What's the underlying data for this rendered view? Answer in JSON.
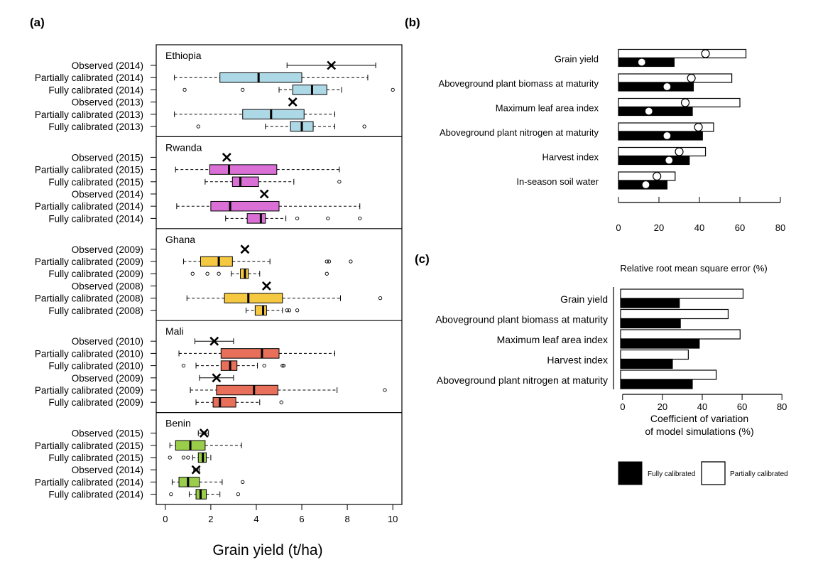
{
  "panel_labels": [
    "(a)",
    "(b)",
    "(c)"
  ],
  "panel_a": {
    "xlabel": "Grain yield (t/ha)",
    "xticks": [
      0,
      2,
      4,
      6,
      8,
      10
    ],
    "xlim": [
      -0.4,
      10.4
    ]
  },
  "panel_b": {
    "xticks": [
      0,
      20,
      40,
      60,
      80
    ],
    "xlim": [
      0,
      80
    ],
    "axis_title": "Relative root mean square error (%)"
  },
  "panel_c": {
    "xticks": [
      0,
      20,
      40,
      60,
      80
    ],
    "xlim": [
      -1,
      81
    ],
    "xlabel_line1": "Coefficient of variation",
    "xlabel_line2": "of model simulations (%)"
  },
  "legend": {
    "fully": "Fully calibrated",
    "partially": "Partially calibrated"
  },
  "colors": {
    "Ethiopia": "#add8e6",
    "Rwanda": "#da70d6",
    "Ghana": "#f5c842",
    "Mali": "#e8705a",
    "Benin": "#9acd4a",
    "fully": "#000000",
    "partially": "#ffffff"
  },
  "chart_data": [
    {
      "type": "box",
      "panel": "(a)",
      "xlabel": "Grain yield (t/ha)",
      "xlim": [
        -0.4,
        10.4
      ],
      "groups": [
        {
          "country": "Ethiopia",
          "rows": [
            {
              "label": "Observed (2014)",
              "kind": "observed",
              "min": 5.35,
              "max": 9.25,
              "mean": 7.3,
              "outliers": []
            },
            {
              "label": "Partially calibrated (2014)",
              "kind": "box",
              "whislo": 0.4,
              "q1": 2.4,
              "med": 4.1,
              "q3": 6.0,
              "whishi": 8.9,
              "outliers": []
            },
            {
              "label": "Fully calibrated (2014)",
              "kind": "box",
              "whislo": 5.0,
              "q1": 5.6,
              "med": 6.45,
              "q3": 7.1,
              "whishi": 7.75,
              "outliers": [
                0.85,
                3.4,
                10.0
              ]
            },
            {
              "label": "Observed (2013)",
              "kind": "observed",
              "min": null,
              "max": null,
              "mean": 5.6,
              "outliers": []
            },
            {
              "label": "Partially calibrated (2013)",
              "kind": "box",
              "whislo": 0.4,
              "q1": 3.4,
              "med": 4.65,
              "q3": 6.1,
              "whishi": 7.45,
              "outliers": []
            },
            {
              "label": "Fully calibrated (2013)",
              "kind": "box",
              "whislo": 4.4,
              "q1": 5.5,
              "med": 6.0,
              "q3": 6.5,
              "whishi": 7.45,
              "outliers": [
                1.45,
                8.75
              ]
            }
          ]
        },
        {
          "country": "Rwanda",
          "rows": [
            {
              "label": "Observed (2015)",
              "kind": "observed",
              "min": null,
              "max": null,
              "mean": 2.7,
              "outliers": []
            },
            {
              "label": "Partially calibrated (2015)",
              "kind": "box",
              "whislo": 0.45,
              "q1": 1.95,
              "med": 2.8,
              "q3": 4.9,
              "whishi": 7.65,
              "outliers": []
            },
            {
              "label": "Fully calibrated (2015)",
              "kind": "box",
              "whislo": 1.75,
              "q1": 2.95,
              "med": 3.3,
              "q3": 4.1,
              "whishi": 5.65,
              "outliers": [
                7.65
              ]
            },
            {
              "label": "Observed (2014)",
              "kind": "observed",
              "min": null,
              "max": null,
              "mean": 4.35,
              "outliers": []
            },
            {
              "label": "Partially calibrated (2014)",
              "kind": "box",
              "whislo": 0.5,
              "q1": 2.0,
              "med": 2.85,
              "q3": 5.0,
              "whishi": 8.55,
              "outliers": []
            },
            {
              "label": "Fully calibrated (2014)",
              "kind": "box",
              "whislo": 2.65,
              "q1": 3.6,
              "med": 4.2,
              "q3": 4.4,
              "whishi": 5.3,
              "outliers": [
                5.8,
                7.15,
                8.55
              ]
            }
          ]
        },
        {
          "country": "Ghana",
          "rows": [
            {
              "label": "Observed (2009)",
              "kind": "observed",
              "min": null,
              "max": null,
              "mean": 3.5,
              "outliers": []
            },
            {
              "label": "Partially calibrated (2009)",
              "kind": "box",
              "whislo": 0.8,
              "q1": 1.55,
              "med": 2.35,
              "q3": 2.95,
              "whishi": 4.6,
              "outliers": [
                7.1,
                7.2,
                8.15
              ]
            },
            {
              "label": "Fully calibrated (2009)",
              "kind": "box",
              "whislo": 2.9,
              "q1": 3.3,
              "med": 3.5,
              "q3": 3.65,
              "whishi": 4.15,
              "outliers": [
                1.2,
                1.85,
                2.35,
                7.1
              ]
            },
            {
              "label": "Observed (2008)",
              "kind": "observed",
              "min": null,
              "max": null,
              "mean": 4.45,
              "outliers": []
            },
            {
              "label": "Partially calibrated (2008)",
              "kind": "box",
              "whislo": 0.95,
              "q1": 2.6,
              "med": 3.65,
              "q3": 5.15,
              "whishi": 7.7,
              "outliers": [
                9.45
              ]
            },
            {
              "label": "Fully calibrated (2008)",
              "kind": "box",
              "whislo": 3.55,
              "q1": 3.95,
              "med": 4.3,
              "q3": 4.45,
              "whishi": 5.15,
              "outliers": [
                5.35,
                5.45,
                5.8
              ]
            }
          ]
        },
        {
          "country": "Mali",
          "rows": [
            {
              "label": "Observed (2010)",
              "kind": "observed",
              "min": 1.3,
              "max": 3.0,
              "mean": 2.15,
              "outliers": []
            },
            {
              "label": "Partially calibrated (2010)",
              "kind": "box",
              "whislo": 0.6,
              "q1": 2.45,
              "med": 4.25,
              "q3": 5.0,
              "whishi": 7.45,
              "outliers": []
            },
            {
              "label": "Fully calibrated (2010)",
              "kind": "box",
              "whislo": 1.35,
              "q1": 2.45,
              "med": 2.85,
              "q3": 3.15,
              "whishi": 4.05,
              "outliers": [
                0.8,
                4.35,
                5.15,
                5.2
              ]
            },
            {
              "label": "Observed (2009)",
              "kind": "observed",
              "min": 1.5,
              "max": 3.0,
              "mean": 2.25,
              "outliers": []
            },
            {
              "label": "Partially calibrated (2009)",
              "kind": "box",
              "whislo": 1.1,
              "q1": 2.25,
              "med": 3.9,
              "q3": 4.95,
              "whishi": 7.55,
              "outliers": [
                9.65
              ]
            },
            {
              "label": "Fully calibrated (2009)",
              "kind": "box",
              "whislo": 1.35,
              "q1": 2.1,
              "med": 2.4,
              "q3": 3.1,
              "whishi": 4.15,
              "outliers": [
                5.1
              ]
            }
          ]
        },
        {
          "country": "Benin",
          "rows": [
            {
              "label": "Observed (2015)",
              "kind": "observed",
              "min": 1.45,
              "max": 1.9,
              "mean": 1.7,
              "outliers": []
            },
            {
              "label": "Partially calibrated (2015)",
              "kind": "box",
              "whislo": 0.2,
              "q1": 0.45,
              "med": 1.1,
              "q3": 1.75,
              "whishi": 3.35,
              "outliers": []
            },
            {
              "label": "Fully calibrated (2015)",
              "kind": "box",
              "whislo": 1.2,
              "q1": 1.45,
              "med": 1.65,
              "q3": 1.8,
              "whishi": 2.0,
              "outliers": [
                0.2,
                0.8,
                1.0
              ]
            },
            {
              "label": "Observed (2014)",
              "kind": "observed",
              "min": 1.25,
              "max": 1.5,
              "mean": 1.35,
              "outliers": []
            },
            {
              "label": "Partially calibrated (2014)",
              "kind": "box",
              "whislo": 0.3,
              "q1": 0.6,
              "med": 1.0,
              "q3": 1.5,
              "whishi": 2.5,
              "outliers": [
                3.4
              ]
            },
            {
              "label": "Fully calibrated (2014)",
              "kind": "box",
              "whislo": 1.05,
              "q1": 1.35,
              "med": 1.55,
              "q3": 1.8,
              "whishi": 2.4,
              "outliers": [
                0.25,
                3.2
              ]
            }
          ]
        }
      ]
    },
    {
      "type": "bar",
      "panel": "(b)",
      "orientation": "horizontal",
      "xlabel": "Relative root mean square error (%)",
      "xlim": [
        0,
        80
      ],
      "categories": [
        "Grain yield",
        "Aboveground plant biomass at maturity",
        "Maximum leaf area index",
        "Aboveground plant nitrogen at maturity",
        "Harvest index",
        "In-season soil water"
      ],
      "series": [
        {
          "name": "Partially calibrated",
          "values": [
            63,
            56,
            60,
            47,
            43,
            28
          ]
        },
        {
          "name": "Fully calibrated",
          "values": [
            27.5,
            37,
            36.5,
            41.5,
            35,
            24
          ]
        }
      ],
      "circles_partially": [
        43,
        36,
        33,
        39.5,
        30,
        19
      ],
      "circles_fully": [
        11.5,
        24,
        15,
        24,
        25,
        13.5
      ]
    },
    {
      "type": "bar",
      "panel": "(c)",
      "orientation": "horizontal",
      "xlabel": "Coefficient of variation of model simulations (%)",
      "xlim": [
        -1,
        81
      ],
      "categories": [
        "Grain yield",
        "Aboveground plant biomass at maturity",
        "Maximum leaf area index",
        "Harvest index",
        "Aboveground plant nitrogen at maturity"
      ],
      "series": [
        {
          "name": "Partially calibrated",
          "values": [
            60.5,
            53,
            59,
            33,
            47
          ]
        },
        {
          "name": "Fully calibrated",
          "values": [
            28.5,
            29,
            38.5,
            25,
            35
          ]
        }
      ]
    }
  ]
}
